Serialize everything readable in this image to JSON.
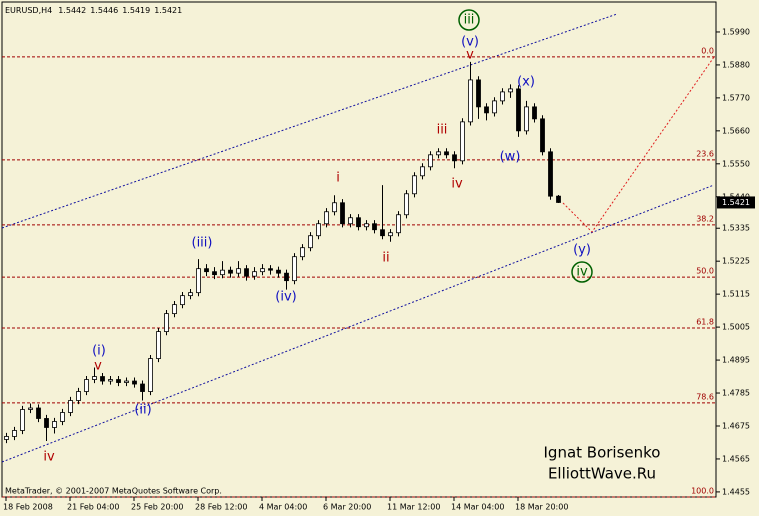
{
  "chart_data": {
    "type": "candlestick",
    "symbol": "EURUSD,H4",
    "footer": "MetaTrader, © 2001-2007 MetaQuotes Software Corp.",
    "watermark": [
      "Ignat Borisenko",
      "ElliottWave.Ru"
    ],
    "ylim": [
      1.4438,
      1.609
    ],
    "yticks": [
      {
        "value": 1.599,
        "label": "1.5990"
      },
      {
        "value": 1.588,
        "label": "1.5880"
      },
      {
        "value": 1.577,
        "label": "1.5770"
      },
      {
        "value": 1.566,
        "label": "1.5660"
      },
      {
        "value": 1.555,
        "label": "1.5550"
      },
      {
        "value": 1.544,
        "label": "1.5440"
      },
      1.5335,
      1.5225,
      1.5115,
      {
        "value": 1.5005,
        "label": "1.5005"
      },
      1.4895,
      1.4785,
      1.4675,
      1.4565,
      1.4455
    ],
    "categories": [
      "18 Feb 2008",
      null,
      null,
      null,
      null,
      null,
      null,
      null,
      "21 Feb 04:00",
      null,
      null,
      null,
      null,
      null,
      null,
      null,
      "25 Feb 20:00",
      null,
      null,
      null,
      null,
      null,
      null,
      null,
      "28 Feb 12:00",
      null,
      null,
      null,
      null,
      null,
      null,
      null,
      "4 Mar 04:00",
      null,
      null,
      null,
      null,
      null,
      null,
      null,
      "6 Mar 20:00",
      null,
      null,
      null,
      null,
      null,
      null,
      null,
      "11 Mar 12:00",
      null,
      null,
      null,
      null,
      null,
      null,
      null,
      "14 Mar 04:00",
      null,
      null,
      null,
      null,
      null,
      null,
      null,
      "18 Mar 20:00",
      null,
      null,
      null,
      null,
      null
    ],
    "ohlc": [
      [
        1.463,
        1.4652,
        1.4618,
        1.464
      ],
      [
        1.464,
        1.4672,
        1.4628,
        1.466
      ],
      [
        1.466,
        1.4742,
        1.4648,
        1.473
      ],
      [
        1.473,
        1.475,
        1.4718,
        1.4735
      ],
      [
        1.4735,
        1.4747,
        1.4688,
        1.47
      ],
      [
        1.47,
        1.4712,
        1.4625,
        1.467
      ],
      [
        1.467,
        1.4702,
        1.465,
        1.469
      ],
      [
        1.469,
        1.4732,
        1.4678,
        1.472
      ],
      [
        1.472,
        1.4772,
        1.4708,
        1.476
      ],
      [
        1.476,
        1.4802,
        1.4748,
        1.479
      ],
      [
        1.479,
        1.4842,
        1.4778,
        1.483
      ],
      [
        1.483,
        1.487,
        1.4818,
        1.484
      ],
      [
        1.484,
        1.4852,
        1.4813,
        1.4825
      ],
      [
        1.4825,
        1.4842,
        1.4813,
        1.483
      ],
      [
        1.483,
        1.4842,
        1.4808,
        1.482
      ],
      [
        1.482,
        1.4837,
        1.4808,
        1.4825
      ],
      [
        1.4825,
        1.4837,
        1.4803,
        1.4815
      ],
      [
        1.4815,
        1.4827,
        1.476,
        1.479
      ],
      [
        1.479,
        1.4912,
        1.4778,
        1.49
      ],
      [
        1.49,
        1.5002,
        1.4888,
        1.499
      ],
      [
        1.499,
        1.5062,
        1.4978,
        1.505
      ],
      [
        1.505,
        1.5092,
        1.5038,
        1.508
      ],
      [
        1.508,
        1.5122,
        1.5068,
        1.511
      ],
      [
        1.511,
        1.5132,
        1.5098,
        1.512
      ],
      [
        1.512,
        1.5232,
        1.5108,
        1.52
      ],
      [
        1.52,
        1.5215,
        1.5175,
        1.519
      ],
      [
        1.519,
        1.5205,
        1.5165,
        1.518
      ],
      [
        1.518,
        1.5225,
        1.5168,
        1.5195
      ],
      [
        1.5195,
        1.5207,
        1.517,
        1.5185
      ],
      [
        1.5185,
        1.5225,
        1.5173,
        1.52
      ],
      [
        1.52,
        1.5212,
        1.516,
        1.5175
      ],
      [
        1.5175,
        1.5205,
        1.5163,
        1.519
      ],
      [
        1.519,
        1.5215,
        1.5178,
        1.52
      ],
      [
        1.52,
        1.5212,
        1.518,
        1.5195
      ],
      [
        1.5195,
        1.5207,
        1.517,
        1.5185
      ],
      [
        1.5185,
        1.5197,
        1.513,
        1.516
      ],
      [
        1.516,
        1.5252,
        1.5148,
        1.524
      ],
      [
        1.524,
        1.5282,
        1.5228,
        1.527
      ],
      [
        1.527,
        1.5322,
        1.5258,
        1.531
      ],
      [
        1.531,
        1.5362,
        1.5298,
        1.535
      ],
      [
        1.535,
        1.5402,
        1.5338,
        1.539
      ],
      [
        1.539,
        1.5445,
        1.5378,
        1.542
      ],
      [
        1.542,
        1.5432,
        1.5338,
        1.535
      ],
      [
        1.535,
        1.5382,
        1.5338,
        1.537
      ],
      [
        1.537,
        1.5382,
        1.5328,
        1.534
      ],
      [
        1.534,
        1.5362,
        1.5328,
        1.535
      ],
      [
        1.535,
        1.5362,
        1.5318,
        1.533
      ],
      [
        1.533,
        1.5479,
        1.5298,
        1.531
      ],
      [
        1.531,
        1.5332,
        1.529,
        1.532
      ],
      [
        1.532,
        1.5392,
        1.5308,
        1.538
      ],
      [
        1.538,
        1.5462,
        1.5368,
        1.545
      ],
      [
        1.545,
        1.5522,
        1.5438,
        1.551
      ],
      [
        1.551,
        1.5552,
        1.5498,
        1.554
      ],
      [
        1.554,
        1.5592,
        1.5528,
        1.558
      ],
      [
        1.558,
        1.5602,
        1.5568,
        1.559
      ],
      [
        1.559,
        1.5602,
        1.5568,
        1.558
      ],
      [
        1.558,
        1.5592,
        1.5535,
        1.556
      ],
      [
        1.556,
        1.5702,
        1.5548,
        1.569
      ],
      [
        1.569,
        1.589,
        1.5678,
        1.583
      ],
      [
        1.583,
        1.5842,
        1.57,
        1.574
      ],
      [
        1.574,
        1.5752,
        1.5695,
        1.572
      ],
      [
        1.572,
        1.5772,
        1.5708,
        1.576
      ],
      [
        1.576,
        1.5802,
        1.5748,
        1.579
      ],
      [
        1.579,
        1.5815,
        1.577,
        1.58
      ],
      [
        1.58,
        1.5812,
        1.564,
        1.566
      ],
      [
        1.566,
        1.576,
        1.5648,
        1.574
      ],
      [
        1.574,
        1.5752,
        1.5688,
        1.57
      ],
      [
        1.57,
        1.5712,
        1.5578,
        1.559
      ],
      [
        1.559,
        1.5602,
        1.543,
        1.5442
      ],
      [
        1.5442,
        1.5446,
        1.5419,
        1.5421
      ]
    ],
    "fib_levels": [
      {
        "label": "0.0",
        "price": 1.5907
      },
      {
        "label": "23.6",
        "price": 1.5563
      },
      {
        "label": "38.2",
        "price": 1.5346
      },
      {
        "label": "50.0",
        "price": 1.5172
      },
      {
        "label": "61.8",
        "price": 1.5002
      },
      {
        "label": "78.6",
        "price": 1.4752
      },
      {
        "label": "100.0",
        "price": 1.4438
      }
    ],
    "fib_color": "#a00000",
    "annotations": [
      {
        "text": "iii",
        "color": "#006000"
      },
      {
        "text": "(v)",
        "color": "#1010c0"
      },
      {
        "text": "v",
        "color": "#b00000"
      },
      {
        "text": "(x)",
        "color": "#1010c0"
      },
      {
        "text": "iii",
        "color": "#b00000"
      },
      {
        "text": "(w)",
        "color": "#1010c0"
      },
      {
        "text": "iv",
        "color": "#b00000"
      },
      {
        "text": "i",
        "color": "#b00000"
      },
      {
        "text": "ii",
        "color": "#b00000"
      },
      {
        "text": "(iii)",
        "color": "#1010c0"
      },
      {
        "text": "(iv)",
        "color": "#1010c0"
      },
      {
        "text": "(i)",
        "color": "#1010c0"
      },
      {
        "text": "v",
        "color": "#b00000"
      },
      {
        "text": "(ii)",
        "color": "#1010c0"
      },
      {
        "text": "iv",
        "color": "#b00000"
      },
      {
        "text": "(y)",
        "color": "#1010c0"
      },
      {
        "text": "iv",
        "color": "#006000"
      }
    ]
  }
}
